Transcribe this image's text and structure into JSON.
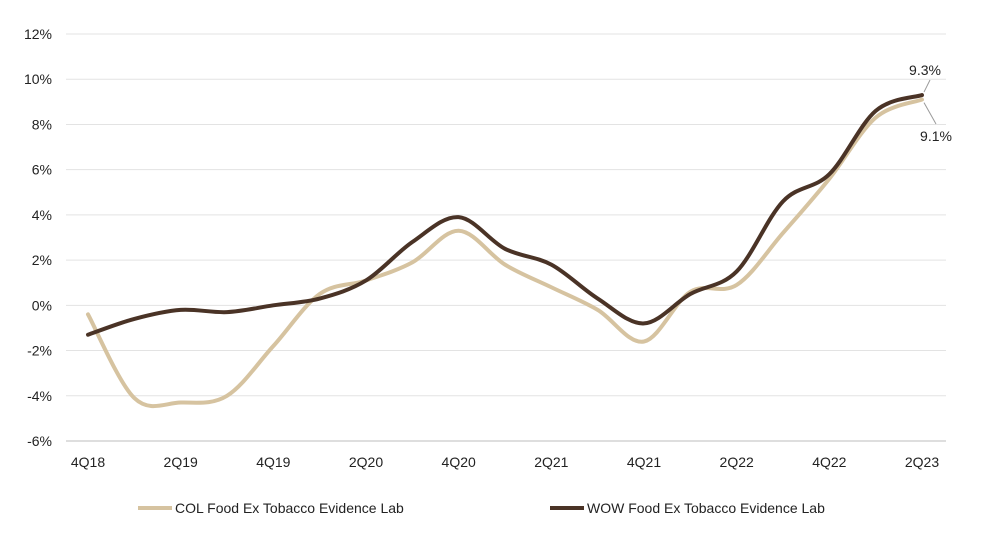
{
  "chart_data": {
    "type": "line",
    "title": "",
    "xlabel": "",
    "ylabel": "",
    "ylim": [
      -6,
      12
    ],
    "y_ticks": [
      -6,
      -4,
      -2,
      0,
      2,
      4,
      6,
      8,
      10,
      12
    ],
    "y_tick_labels": [
      "-6%",
      "-4%",
      "-2%",
      "0%",
      "2%",
      "4%",
      "6%",
      "8%",
      "10%",
      "12%"
    ],
    "grid": true,
    "x_tick_labels": [
      "4Q18",
      "2Q19",
      "4Q19",
      "2Q20",
      "4Q20",
      "2Q21",
      "4Q21",
      "2Q22",
      "4Q22",
      "2Q23"
    ],
    "x_tick_positions": [
      0,
      2,
      4,
      6,
      8,
      10,
      12,
      14,
      16,
      18
    ],
    "xlim": [
      0,
      18
    ],
    "series": [
      {
        "name": "COL Food Ex Tobacco Evidence Lab",
        "color": "#d6c3a0",
        "x": [
          0,
          1,
          2,
          3,
          4,
          5,
          6,
          7,
          8,
          9,
          10,
          11,
          12,
          13,
          14,
          15,
          16,
          17,
          18
        ],
        "values": [
          -0.4,
          -4.1,
          -4.3,
          -4.0,
          -1.8,
          0.5,
          1.1,
          1.9,
          3.3,
          1.8,
          0.8,
          -0.2,
          -1.6,
          0.6,
          0.9,
          3.2,
          5.6,
          8.3,
          9.1
        ]
      },
      {
        "name": "WOW Food Ex Tobacco Evidence Lab",
        "color": "#4a3326",
        "x": [
          0,
          1,
          2,
          3,
          4,
          5,
          6,
          7,
          8,
          9,
          10,
          11,
          12,
          13,
          14,
          15,
          16,
          17,
          18
        ],
        "values": [
          -1.3,
          -0.6,
          -0.2,
          -0.3,
          0.0,
          0.3,
          1.1,
          2.8,
          3.9,
          2.5,
          1.8,
          0.3,
          -0.8,
          0.5,
          1.5,
          4.6,
          5.8,
          8.6,
          9.3
        ]
      }
    ],
    "annotations": [
      {
        "text": "9.3%",
        "series": "WOW Food Ex Tobacco Evidence Lab"
      },
      {
        "text": "9.1%",
        "series": "COL Food Ex Tobacco Evidence Lab"
      }
    ],
    "legend": {
      "placement": "bottom"
    }
  }
}
